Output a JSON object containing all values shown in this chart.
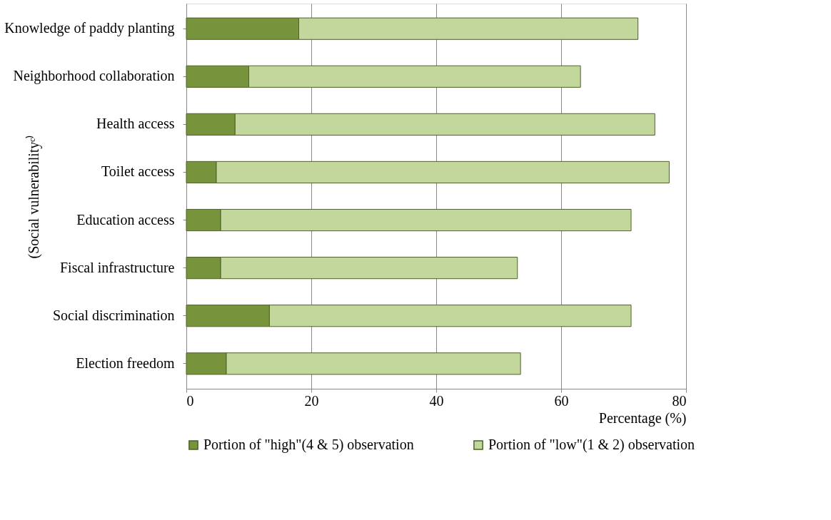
{
  "chart_data": {
    "type": "bar",
    "orientation": "horizontal",
    "stacked": true,
    "categories": [
      "Knowledge of paddy planting",
      "Neighborhood collaboration",
      "Health access",
      "Toilet access",
      "Education access",
      "Fiscal infrastructure",
      "Social discrimination",
      "Election freedom"
    ],
    "series": [
      {
        "name": "Portion of \"high\"(4 & 5) observation",
        "color": "#77933c",
        "values": [
          18,
          10,
          7.8,
          4.8,
          5.5,
          5.5,
          13.3,
          6.4
        ]
      },
      {
        "name": "Portion of \"low\"(1 & 2) observation",
        "color": "#c3d69b",
        "values": [
          54.3,
          53.1,
          67.2,
          72.5,
          65.7,
          47.5,
          57.9,
          47.1
        ]
      }
    ],
    "xlim": [
      0,
      80
    ],
    "xticks": [
      0,
      20,
      40,
      60,
      80
    ],
    "xlabel": "Percentage (%)",
    "ylabel": "(Social vulnerabilityᶜ⁾",
    "grid": "x",
    "legend": "bottom"
  }
}
